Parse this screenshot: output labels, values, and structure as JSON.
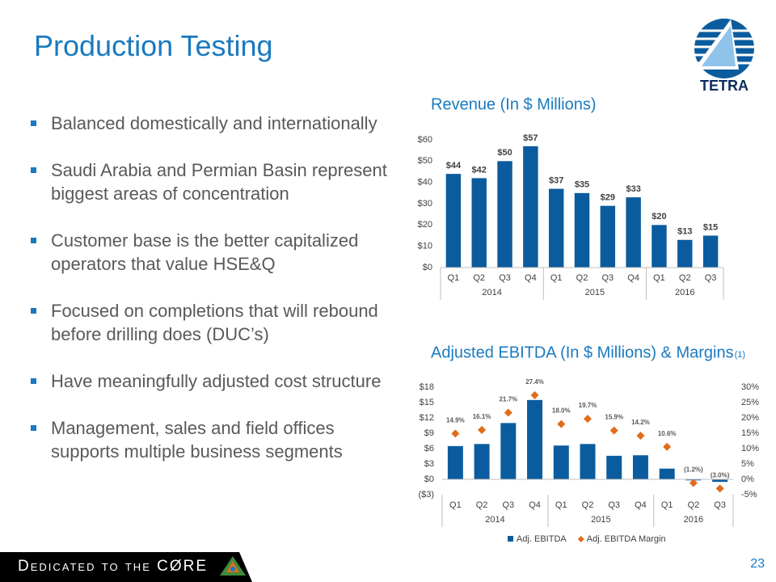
{
  "title": "Production Testing",
  "logo_text": "TETRA",
  "bullets": [
    "Balanced domestically and internationally",
    "Saudi Arabia and Permian Basin represent biggest areas of concentration",
    "Customer base is the better capitalized operators that value HSE&Q",
    "Focused on completions that will rebound before drilling does (DUC’s)",
    "Have meaningfully adjusted cost structure",
    "Management, sales and field offices supports multiple business segments"
  ],
  "footer": "Dedicated to the CØRE",
  "page_number": "23",
  "chart_data": [
    {
      "type": "bar",
      "title": "Revenue (In $ Millions)",
      "category_groups": [
        {
          "label": "2014",
          "categories": [
            "Q1",
            "Q2",
            "Q3",
            "Q4"
          ]
        },
        {
          "label": "2015",
          "categories": [
            "Q1",
            "Q2",
            "Q3",
            "Q4"
          ]
        },
        {
          "label": "2016",
          "categories": [
            "Q1",
            "Q2",
            "Q3"
          ]
        }
      ],
      "values": [
        44,
        42,
        50,
        57,
        37,
        35,
        29,
        33,
        20,
        13,
        15
      ],
      "value_labels": [
        "$44",
        "$42",
        "$50",
        "$57",
        "$37",
        "$35",
        "$29",
        "$33",
        "$20",
        "$13",
        "$15"
      ],
      "color": "#0b5c9e",
      "ylim": [
        0,
        60
      ],
      "yticks": [
        {
          "value": 0,
          "label": "$0"
        },
        {
          "value": 10,
          "label": "$10"
        },
        {
          "value": 20,
          "label": "$20"
        },
        {
          "value": 30,
          "label": "$30"
        },
        {
          "value": 40,
          "label": "$40"
        },
        {
          "value": 50,
          "label": "$50"
        },
        {
          "value": 60,
          "label": "$60"
        }
      ]
    },
    {
      "type": "combo",
      "title": "Adjusted EBITDA (In $ Millions) & Margins",
      "title_note": "(1)",
      "category_groups": [
        {
          "label": "2014",
          "categories": [
            "Q1",
            "Q2",
            "Q3",
            "Q4"
          ]
        },
        {
          "label": "2015",
          "categories": [
            "Q1",
            "Q2",
            "Q3",
            "Q4"
          ]
        },
        {
          "label": "2016",
          "categories": [
            "Q1",
            "Q2",
            "Q3"
          ]
        }
      ],
      "series": [
        {
          "name": "Adj. EBITDA",
          "color": "#0b5c9e",
          "values": [
            6.5,
            6.9,
            11.0,
            15.5,
            6.6,
            6.9,
            4.6,
            4.7,
            2.1,
            -0.2,
            -0.5
          ]
        },
        {
          "name": "Adj. EBITDA Margin",
          "color": "#e06c1a",
          "axis": "y2",
          "marker": "diamond",
          "values": [
            14.9,
            16.1,
            21.7,
            27.4,
            18.0,
            19.7,
            15.9,
            14.2,
            10.6,
            -1.2,
            -3.0
          ],
          "value_labels": [
            "14.9%",
            "16.1%",
            "21.7%",
            "27.4%",
            "18.0%",
            "19.7%",
            "15.9%",
            "14.2%",
            "10.6%",
            "(1.2%)",
            "(3.0%)"
          ]
        }
      ],
      "ylim": [
        -3,
        18
      ],
      "yticks": [
        {
          "value": -3,
          "label": "($3)"
        },
        {
          "value": 0,
          "label": "$0"
        },
        {
          "value": 3,
          "label": "$3"
        },
        {
          "value": 6,
          "label": "$6"
        },
        {
          "value": 9,
          "label": "$9"
        },
        {
          "value": 12,
          "label": "$12"
        },
        {
          "value": 15,
          "label": "$15"
        },
        {
          "value": 18,
          "label": "$18"
        }
      ],
      "y2lim": [
        -5,
        30
      ],
      "y2ticks": [
        {
          "value": -5,
          "label": "-5%"
        },
        {
          "value": 0,
          "label": "0%"
        },
        {
          "value": 5,
          "label": "5%"
        },
        {
          "value": 10,
          "label": "10%"
        },
        {
          "value": 15,
          "label": "15%"
        },
        {
          "value": 20,
          "label": "20%"
        },
        {
          "value": 25,
          "label": "25%"
        },
        {
          "value": 30,
          "label": "30%"
        }
      ],
      "legend": "bottom"
    }
  ]
}
